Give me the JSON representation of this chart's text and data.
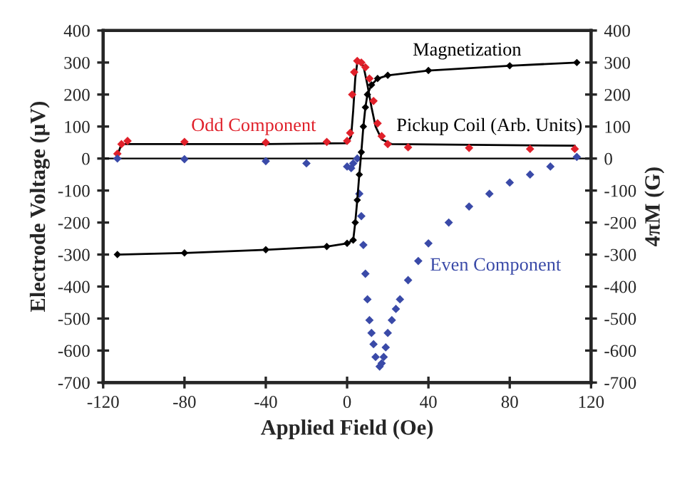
{
  "chart_data": {
    "type": "line",
    "xlabel": "Applied Field (Oe)",
    "ylabel": "Electrode Voltage (μV)",
    "y2label": "4πM (G)",
    "xlim": [
      -120,
      120
    ],
    "xticks": [
      -120,
      -80,
      -40,
      0,
      40,
      80,
      120
    ],
    "ylim": [
      -700,
      400
    ],
    "yticks": [
      -700,
      -600,
      -500,
      -400,
      -300,
      -200,
      -100,
      0,
      100,
      200,
      300,
      400
    ],
    "y2lim": [
      -700,
      400
    ],
    "y2ticks": [
      -700,
      -600,
      -500,
      -400,
      -300,
      -200,
      -100,
      0,
      100,
      200,
      300,
      400
    ],
    "grid": false,
    "legend": false,
    "ref_lines": [
      {
        "axis": "y",
        "value": 0,
        "color": "#000000"
      }
    ],
    "series": [
      {
        "name": "Pickup Coil (Arb. Units)",
        "marker": "none",
        "color": "#000000",
        "x": [
          -113,
          -111,
          -80,
          -40,
          0,
          2,
          3,
          4,
          5,
          6,
          8,
          10,
          12,
          14,
          17,
          22,
          60,
          112
        ],
        "values": [
          10,
          45,
          45,
          45,
          48,
          70,
          150,
          250,
          300,
          305,
          290,
          230,
          160,
          100,
          60,
          45,
          43,
          40
        ]
      },
      {
        "name": "Odd Component",
        "type": "scatter",
        "marker": "diamond",
        "color": "#e0202a",
        "x": [
          -113,
          -111,
          -108,
          -80,
          -40,
          -10,
          0,
          1.5,
          2.5,
          3.5,
          5,
          7,
          9,
          11,
          13,
          15,
          17,
          20,
          30,
          60,
          90,
          112
        ],
        "values": [
          15,
          45,
          55,
          52,
          50,
          52,
          55,
          80,
          200,
          270,
          305,
          300,
          285,
          250,
          180,
          110,
          70,
          45,
          35,
          33,
          30,
          30
        ]
      },
      {
        "name": "Magnetization",
        "marker": "diamond",
        "axis": "y2",
        "color": "#000000",
        "x": [
          -113,
          -80,
          -40,
          -10,
          0,
          3,
          4,
          5,
          6,
          7,
          8,
          9,
          10,
          12,
          15,
          20,
          40,
          80,
          113
        ],
        "values": [
          -300,
          -295,
          -285,
          -275,
          -265,
          -255,
          -200,
          -130,
          -50,
          20,
          100,
          160,
          200,
          230,
          250,
          260,
          275,
          290,
          300
        ]
      },
      {
        "name": "Even Component",
        "type": "scatter",
        "marker": "diamond",
        "color": "#3a4aa8",
        "x": [
          -113,
          -80,
          -40,
          -20,
          0,
          2,
          3,
          5,
          6,
          7,
          8,
          9,
          10,
          11,
          12,
          13,
          14,
          16,
          17,
          18,
          19,
          20,
          22,
          24,
          26,
          30,
          35,
          40,
          50,
          60,
          70,
          80,
          90,
          100,
          113
        ],
        "values": [
          0,
          -2,
          -8,
          -15,
          -25,
          -30,
          -15,
          0,
          -110,
          -180,
          -270,
          -360,
          -440,
          -505,
          -545,
          -580,
          -620,
          -650,
          -640,
          -620,
          -590,
          -545,
          -505,
          -470,
          -440,
          -380,
          -320,
          -265,
          -200,
          -150,
          -110,
          -75,
          -50,
          -25,
          5
        ]
      }
    ]
  }
}
